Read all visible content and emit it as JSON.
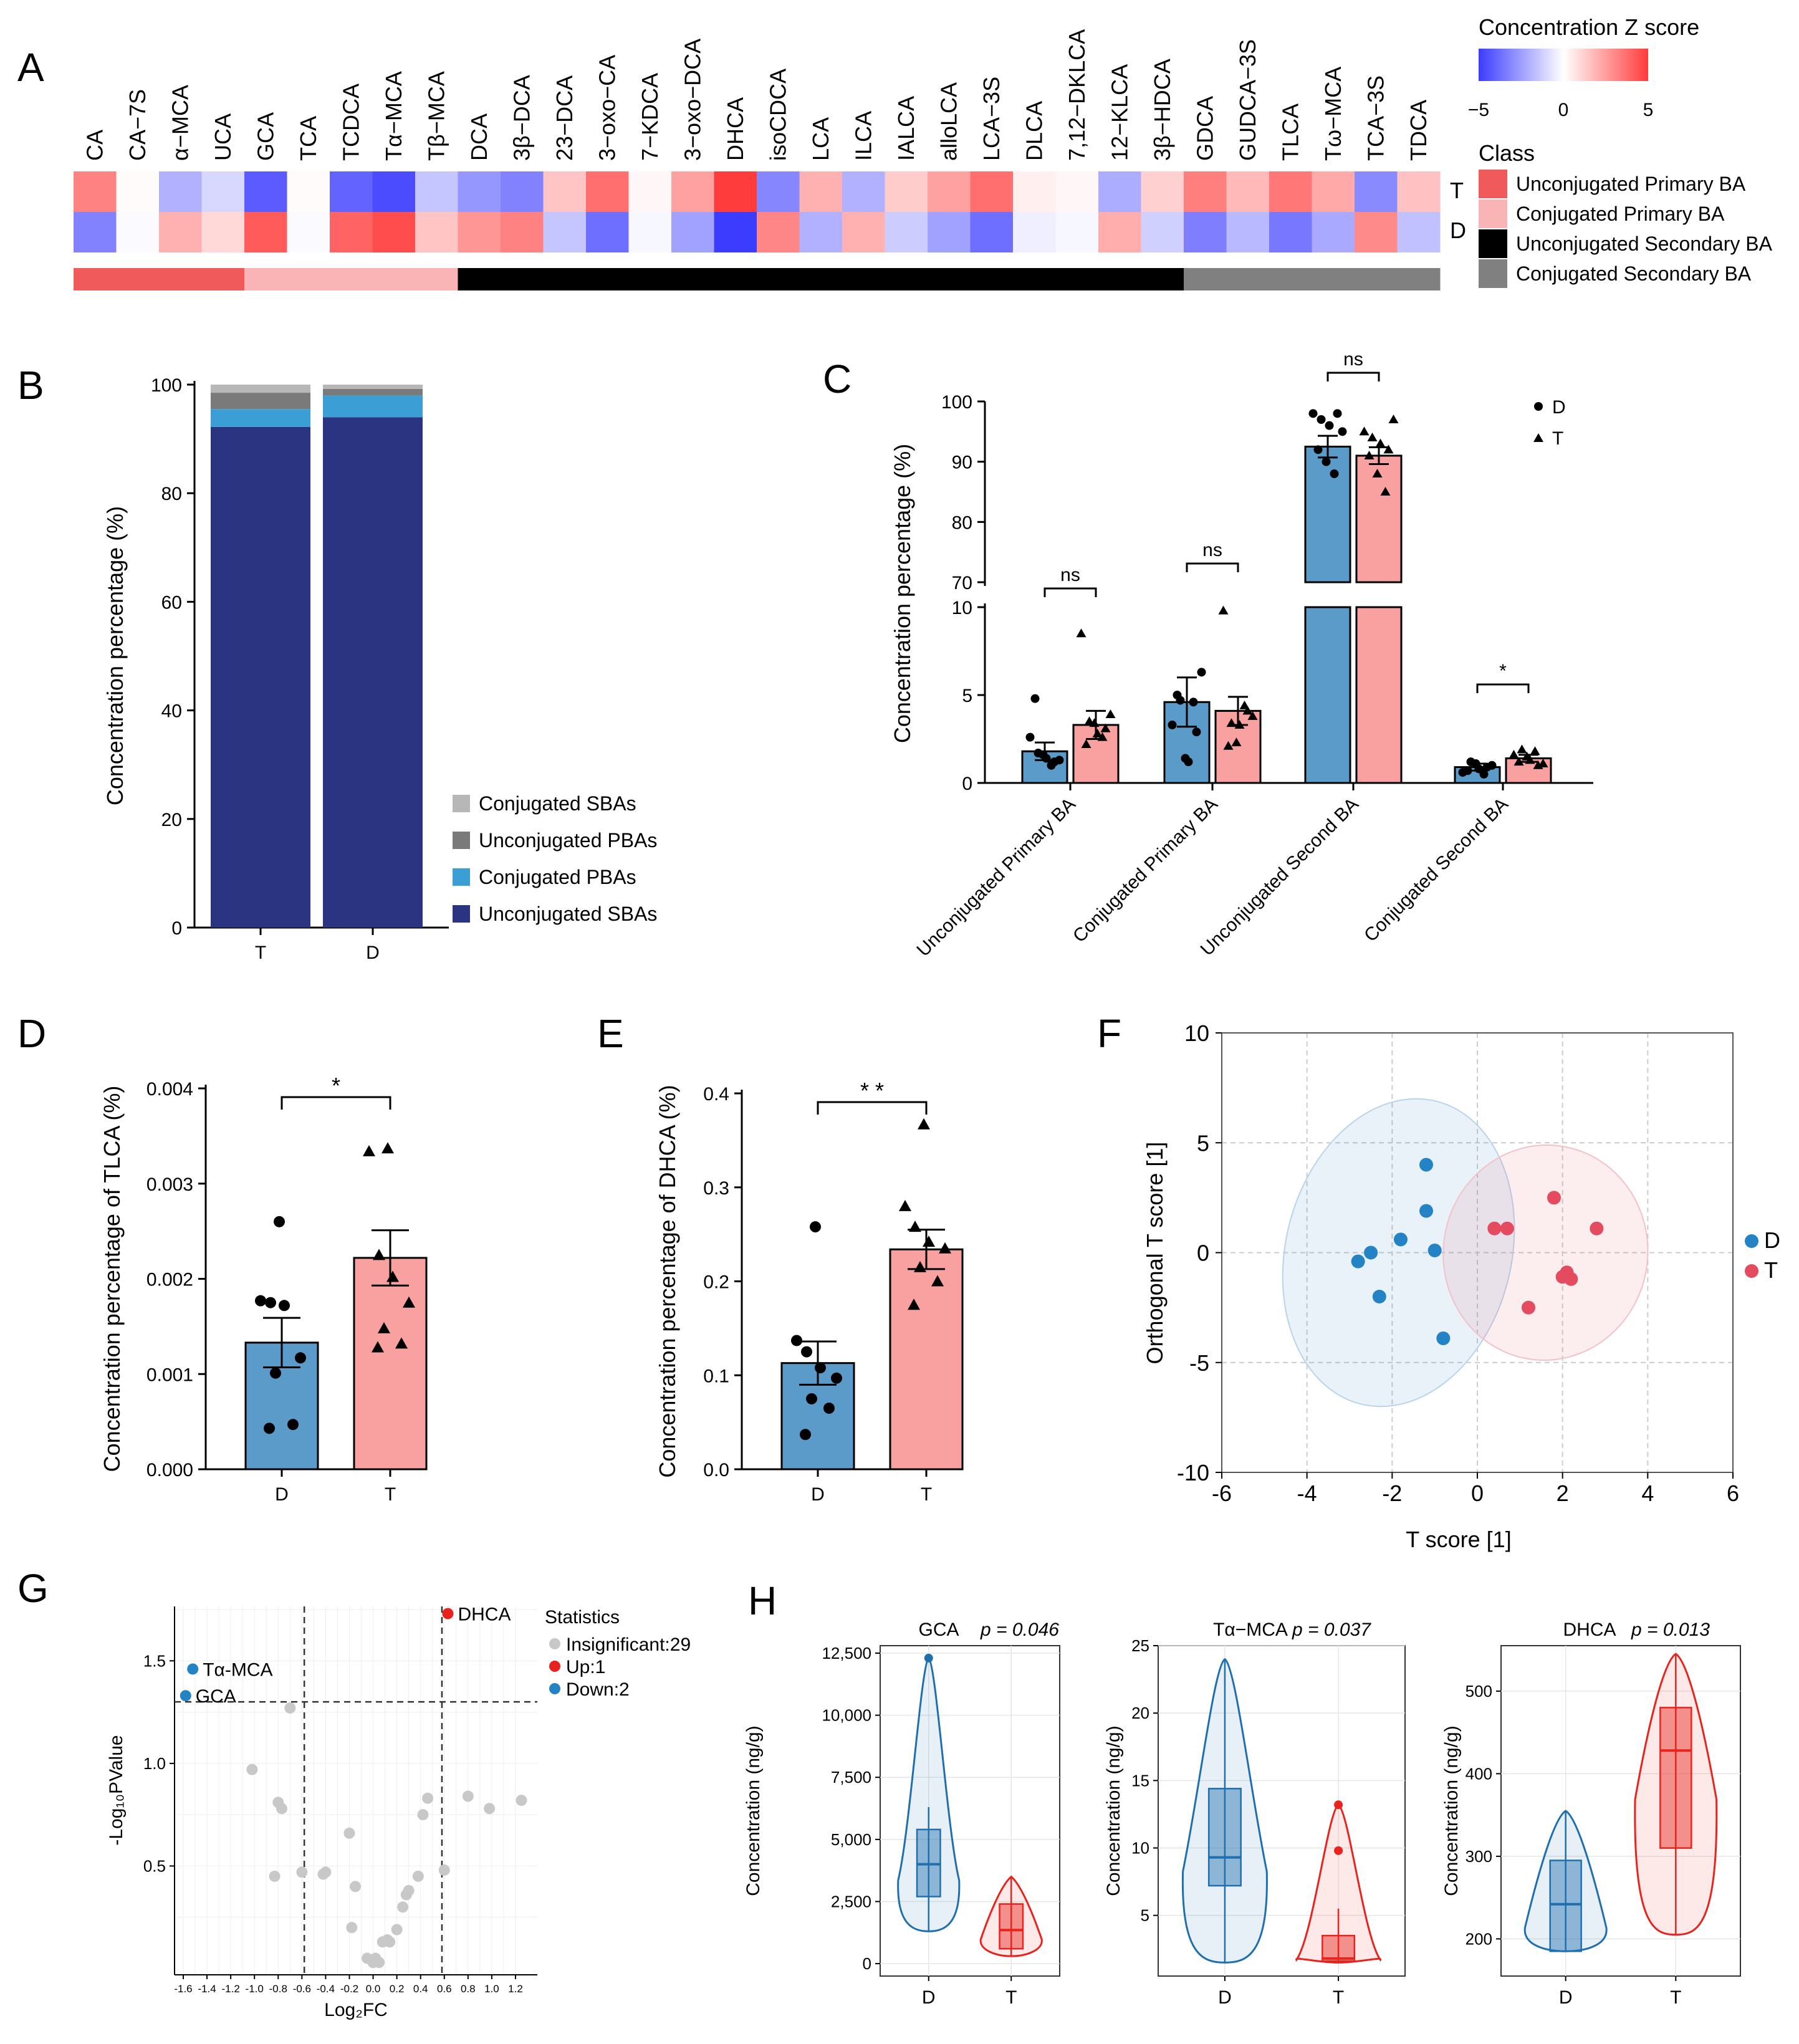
{
  "chart_data": [
    {
      "panel": "A",
      "type": "heatmap",
      "columns": [
        "CA",
        "CA−7S",
        "α−MCA",
        "UCA",
        "GCA",
        "TCA",
        "TCDCA",
        "Tα−MCA",
        "Tβ−MCA",
        "DCA",
        "3β−DCA",
        "23−DCA",
        "3−oxo−CA",
        "7−KDCA",
        "3−oxo−DCA",
        "DHCA",
        "isoCDCA",
        "LCA",
        "ILCA",
        "IALCA",
        "alloLCA",
        "LCA−3S",
        "DLCA",
        "7,12−DKLCA",
        "12−KLCA",
        "3β−HDCA",
        "GDCA",
        "GUDCA−3S",
        "TLCA",
        "Tω−MCA",
        "TCA−3S",
        "TDCA"
      ],
      "rows": [
        "T",
        "D"
      ],
      "values_T": [
        3.2,
        0.1,
        -2.0,
        -1.0,
        -4.2,
        0.1,
        -4.0,
        -4.6,
        -1.5,
        -2.7,
        -3.2,
        1.5,
        3.7,
        0.2,
        2.4,
        5.0,
        -3.1,
        2.0,
        -2.0,
        1.3,
        2.4,
        3.7,
        0.4,
        0.2,
        -2.1,
        1.2,
        3.3,
        1.8,
        3.5,
        2.2,
        -3.0,
        1.6
      ],
      "values_D": [
        -3.2,
        -0.1,
        2.0,
        1.0,
        4.2,
        -0.1,
        4.0,
        4.6,
        1.5,
        2.7,
        3.2,
        -1.5,
        -3.7,
        -0.2,
        -2.4,
        -5.0,
        3.1,
        -2.0,
        2.0,
        -1.3,
        -2.4,
        -3.7,
        -0.4,
        -0.2,
        2.1,
        -1.2,
        -3.3,
        -1.8,
        -3.5,
        -2.2,
        3.0,
        -1.6
      ],
      "class_spans": [
        {
          "class": "Unconjugated Primary BA",
          "from": 0,
          "to": 4
        },
        {
          "class": "Conjugated Primary BA",
          "from": 4,
          "to": 9
        },
        {
          "class": "Unconjugated Secondary BA",
          "from": 9,
          "to": 26
        },
        {
          "class": "Conjugated Secondary BA",
          "from": 26,
          "to": 32
        }
      ],
      "colorbar_title": "Concentration Z score",
      "colorbar_range": [
        -5,
        5
      ],
      "colorbar_tick_labels": [
        "−5",
        "0",
        "5"
      ],
      "class_legend_title": "Class",
      "classes": [
        {
          "name": "Unconjugated Primary BA",
          "color": "#f15a5a"
        },
        {
          "name": "Conjugated Primary BA",
          "color": "#f9b5b5"
        },
        {
          "name": "Unconjugated Secondary BA",
          "color": "#000000"
        },
        {
          "name": "Conjugated Secondary BA",
          "color": "#808080"
        }
      ]
    },
    {
      "panel": "B",
      "type": "bar",
      "stacked": true,
      "categories": [
        "T",
        "D"
      ],
      "series": [
        {
          "name": "Unconjugated SBAs",
          "values": [
            92.2,
            94.0
          ],
          "color": "#2b3480"
        },
        {
          "name": "Conjugated PBAs",
          "values": [
            3.3,
            4.0
          ],
          "color": "#3b9fd6"
        },
        {
          "name": "Unconjugated PBAs",
          "values": [
            3.0,
            1.2
          ],
          "color": "#7a7a7a"
        },
        {
          "name": "Conjugated SBAs",
          "values": [
            1.5,
            0.8
          ],
          "color": "#b7b7b7"
        }
      ],
      "legend_order": [
        "Conjugated SBAs",
        "Unconjugated PBAs",
        "Conjugated PBAs",
        "Unconjugated SBAs"
      ],
      "ylabel": "Concentration percentage (%)",
      "ylim": [
        0,
        100
      ],
      "yticks": [
        "0",
        "20",
        "40",
        "60",
        "80",
        "100"
      ]
    },
    {
      "panel": "C",
      "type": "bar",
      "broken_axis": {
        "lower": [
          0,
          10
        ],
        "upper": [
          70,
          100
        ]
      },
      "categories": [
        "Unconjugated Primary BA",
        "Conjugated Primary BA",
        "Unconjugated Second BA",
        "Conjugated Second BA"
      ],
      "series": [
        {
          "name": "D",
          "marker": "circle",
          "color": "#5b9bc9",
          "means": [
            1.8,
            4.6,
            92.5,
            0.9
          ],
          "sem": [
            0.5,
            1.4,
            1.8,
            0.2
          ]
        },
        {
          "name": "T",
          "marker": "triangle",
          "color": "#f9a0a0",
          "means": [
            3.3,
            4.1,
            91.0,
            1.4
          ],
          "sem": [
            0.8,
            0.8,
            1.4,
            0.2
          ]
        }
      ],
      "points_D": [
        [
          2.6,
          1.7,
          1.4,
          1.2,
          4.8,
          1.6,
          1.0,
          1.3
        ],
        [
          3.3,
          4.7,
          1.2,
          2.9,
          5.0,
          1.4,
          4.6,
          6.3
        ],
        [
          98,
          97,
          96,
          98,
          92,
          90,
          88,
          95
        ],
        [
          0.6,
          1.2,
          0.8,
          0.9,
          0.7,
          1.1,
          0.5,
          1.0
        ]
      ],
      "points_T": [
        [
          8.5,
          3.5,
          2.8,
          3.1,
          2.2,
          3.4,
          2.6,
          3.9
        ],
        [
          9.8,
          3.4,
          3.3,
          4.1,
          2.1,
          2.3,
          4.4,
          3.8
        ],
        [
          95,
          94,
          93,
          92,
          91,
          88,
          85,
          97
        ],
        [
          1.6,
          1.9,
          1.3,
          1.0,
          1.2,
          1.5,
          1.8,
          1.1
        ]
      ],
      "significance": [
        "ns",
        "ns",
        "ns",
        "*"
      ],
      "ylabel": "Concentration percentage (%)",
      "yticks_lower": [
        "0",
        "5",
        "10"
      ],
      "yticks_upper": [
        "70",
        "80",
        "90",
        "100"
      ],
      "legend": [
        "D",
        "T"
      ]
    },
    {
      "panel": "D",
      "type": "bar",
      "categories": [
        "D",
        "T"
      ],
      "means": [
        0.00133,
        0.00222
      ],
      "sem": [
        0.00026,
        0.00029
      ],
      "points": [
        [
          0.0026,
          0.00177,
          0.00175,
          0.00172,
          0.00117,
          0.00101,
          0.00047,
          0.00043
        ],
        [
          0.00337,
          0.00334,
          0.00225,
          0.00202,
          0.00175,
          0.00148,
          0.00132,
          0.00128
        ]
      ],
      "colors": [
        "#5b9bc9",
        "#f9a0a0"
      ],
      "significance": "*",
      "ylabel": "Concentration percentage of TLCA (%)",
      "ylim": [
        0,
        0.004
      ],
      "yticks": [
        "0.000",
        "0.001",
        "0.002",
        "0.003",
        "0.004"
      ]
    },
    {
      "panel": "E",
      "type": "bar",
      "categories": [
        "D",
        "T"
      ],
      "means": [
        0.113,
        0.234
      ],
      "sem": [
        0.023,
        0.021
      ],
      "points": [
        [
          0.258,
          0.137,
          0.125,
          0.108,
          0.097,
          0.075,
          0.065,
          0.037
        ],
        [
          0.367,
          0.28,
          0.258,
          0.242,
          0.235,
          0.215,
          0.2,
          0.175
        ]
      ],
      "colors": [
        "#5b9bc9",
        "#f9a0a0"
      ],
      "significance": "* *",
      "ylabel": "Concentration percentage of DHCA (%)",
      "ylim": [
        0,
        0.4
      ],
      "yticks": [
        "0.0",
        "0.1",
        "0.2",
        "0.3",
        "0.4"
      ]
    },
    {
      "panel": "F",
      "type": "scatter",
      "xlabel": "T score [1]",
      "ylabel": "Orthogonal T score [1]",
      "xlim": [
        -6,
        6
      ],
      "ylim": [
        -10,
        10
      ],
      "xticks": [
        "-6",
        "-4",
        "-2",
        "0",
        "2",
        "4",
        "6"
      ],
      "yticks": [
        "-10",
        "-5",
        "0",
        "5",
        "10"
      ],
      "series": [
        {
          "name": "D",
          "color": "#2383c4",
          "points": [
            [
              -1.2,
              4.0
            ],
            [
              -1.2,
              1.9
            ],
            [
              -1.0,
              0.1
            ],
            [
              -1.8,
              0.6
            ],
            [
              -2.8,
              -0.4
            ],
            [
              -2.5,
              0.0
            ],
            [
              -2.3,
              -2.0
            ],
            [
              -0.8,
              -3.9
            ]
          ]
        },
        {
          "name": "T",
          "color": "#e44b5e",
          "points": [
            [
              0.4,
              1.1
            ],
            [
              0.7,
              1.1
            ],
            [
              1.8,
              2.5
            ],
            [
              2.8,
              1.1
            ],
            [
              2.1,
              -0.9
            ],
            [
              2.2,
              -1.2
            ],
            [
              2.0,
              -1.1
            ],
            [
              1.2,
              -2.5
            ]
          ]
        }
      ]
    },
    {
      "panel": "G",
      "type": "scatter",
      "subtype": "volcano",
      "xlabel": "Log₂FC",
      "ylabel": "-Log₁₀PValue",
      "xlim": [
        -1.6,
        1.3
      ],
      "ylim": [
        0,
        1.75
      ],
      "xticks": [
        "-1.6",
        "-1.4",
        "-1.2",
        "-1.0",
        "-0.8",
        "-0.6",
        "-0.4",
        "-0.2",
        "0.0",
        "0.2",
        "0.4",
        "0.6",
        "0.8",
        "1.0",
        "1.2"
      ],
      "yticks": [
        "0.5",
        "1.0",
        "1.5"
      ],
      "legend_title": "Statistics",
      "legend": [
        {
          "label": "Insignificant:29",
          "color": "#c8c8c8"
        },
        {
          "label": "Up:1",
          "color": "#e8231d"
        },
        {
          "label": "Down:2",
          "color": "#2383c4"
        }
      ],
      "labeled_points": [
        {
          "label": "DHCA",
          "x": 0.63,
          "y": 1.73,
          "group": "Up"
        },
        {
          "label": "Tα-MCA",
          "x": -1.52,
          "y": 1.46,
          "group": "Down"
        },
        {
          "label": "GCA",
          "x": -1.58,
          "y": 1.33,
          "group": "Down"
        }
      ],
      "insignificant_points": [
        [
          -0.7,
          1.27
        ],
        [
          -1.02,
          0.97
        ],
        [
          -0.8,
          0.81
        ],
        [
          -0.77,
          0.78
        ],
        [
          -0.83,
          0.45
        ],
        [
          -0.6,
          0.47
        ],
        [
          -0.4,
          0.47
        ],
        [
          -0.42,
          0.46
        ],
        [
          -0.2,
          0.66
        ],
        [
          -0.15,
          0.4
        ],
        [
          -0.18,
          0.2
        ],
        [
          -0.05,
          0.05
        ],
        [
          0.0,
          0.03
        ],
        [
          0.02,
          0.05
        ],
        [
          0.05,
          0.03
        ],
        [
          0.08,
          0.13
        ],
        [
          0.12,
          0.14
        ],
        [
          0.14,
          0.13
        ],
        [
          0.2,
          0.19
        ],
        [
          0.25,
          0.3
        ],
        [
          0.28,
          0.36
        ],
        [
          0.3,
          0.38
        ],
        [
          0.38,
          0.45
        ],
        [
          0.42,
          0.75
        ],
        [
          0.46,
          0.83
        ],
        [
          0.6,
          0.48
        ],
        [
          0.8,
          0.84
        ],
        [
          0.98,
          0.78
        ],
        [
          1.25,
          0.82
        ]
      ],
      "thresholds": {
        "x": [
          -0.58,
          0.58
        ],
        "y": 1.3
      }
    },
    {
      "panel": "H",
      "type": "violin",
      "subplots": [
        {
          "title": "GCA",
          "p_text": "p = 0.046",
          "ylabel": "Concentration (ng/g)",
          "ylim": [
            -500,
            12800
          ],
          "yticks": [
            "0",
            "2,500",
            "5,000",
            "7,500",
            "10,000",
            "12,500"
          ],
          "ytick_values": [
            0,
            2500,
            5000,
            7500,
            10000,
            12500
          ],
          "groups": [
            {
              "name": "D",
              "min": 1300,
              "q1": 2700,
              "median": 4000,
              "q3": 5400,
              "max": 12300,
              "whisker_low": 1300,
              "whisker_high": 6300,
              "outliers": [
                12300
              ]
            },
            {
              "name": "T",
              "min": 300,
              "q1": 600,
              "median": 1350,
              "q3": 2400,
              "max": 3500,
              "whisker_low": 300,
              "whisker_high": 3500,
              "outliers": []
            }
          ]
        },
        {
          "title": "Tα−MCA",
          "p_text": "p = 0.037",
          "ylabel": "Concentration (ng/g)",
          "ylim": [
            0.5,
            25
          ],
          "yticks": [
            "5",
            "10",
            "15",
            "20",
            "25"
          ],
          "ytick_values": [
            5,
            10,
            15,
            20,
            25
          ],
          "groups": [
            {
              "name": "D",
              "min": 1.5,
              "q1": 7.2,
              "median": 9.3,
              "q3": 14.4,
              "max": 24,
              "whisker_low": 1.5,
              "whisker_high": 24,
              "outliers": []
            },
            {
              "name": "T",
              "min": 1.5,
              "q1": 1.6,
              "median": 1.8,
              "q3": 3.5,
              "max": 13.2,
              "whisker_low": 1.5,
              "whisker_high": 5.5,
              "outliers": [
                13.2,
                9.8
              ]
            }
          ]
        },
        {
          "title": "DHCA",
          "p_text": "p = 0.013",
          "ylabel": "Concentration (ng/g)",
          "ylim": [
            155,
            555
          ],
          "yticks": [
            "200",
            "300",
            "400",
            "500"
          ],
          "ytick_values": [
            200,
            300,
            400,
            500
          ],
          "groups": [
            {
              "name": "D",
              "min": 185,
              "q1": 185,
              "median": 242,
              "q3": 295,
              "max": 355,
              "whisker_low": 185,
              "whisker_high": 355,
              "outliers": []
            },
            {
              "name": "T",
              "min": 205,
              "q1": 310,
              "median": 428,
              "q3": 480,
              "max": 545,
              "whisker_low": 205,
              "whisker_high": 545,
              "outliers": []
            }
          ]
        }
      ],
      "categories": [
        "D",
        "T"
      ],
      "colors": {
        "D": "#1f6fae",
        "T": "#e8231d"
      }
    }
  ],
  "panel_letters": [
    "A",
    "B",
    "C",
    "D",
    "E",
    "F",
    "G",
    "H"
  ]
}
